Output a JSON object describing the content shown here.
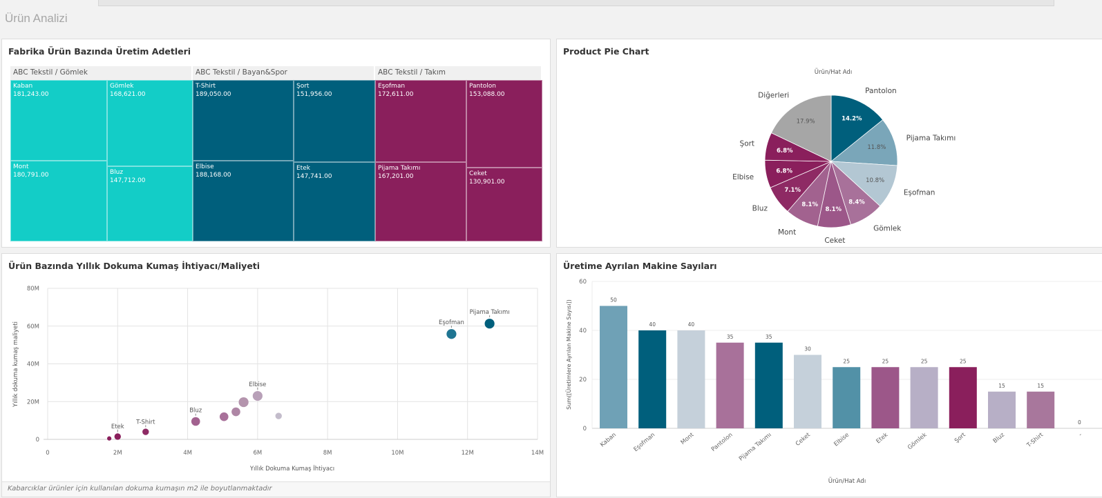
{
  "sheet": {
    "title": "Ürün Analizi"
  },
  "treemap": {
    "title": "Fabrika Ürün Bazında Üretim Adetleri",
    "groups": [
      {
        "name": "ABC Tekstil / Gömlek",
        "color": "#13cdc7",
        "items": [
          {
            "label": "Kaban",
            "value": "181,243.00"
          },
          {
            "label": "Gömlek",
            "value": "168,621.00"
          },
          {
            "label": "Mont",
            "value": "180,791.00"
          },
          {
            "label": "Bluz",
            "value": "147,712.00"
          }
        ]
      },
      {
        "name": "ABC Tekstil / Bayan&Spor",
        "color": "#005f7c",
        "items": [
          {
            "label": "T-Shirt",
            "value": "189,050.00"
          },
          {
            "label": "Şort",
            "value": "151,956.00"
          },
          {
            "label": "Elbise",
            "value": "188,168.00"
          },
          {
            "label": "Etek",
            "value": "147,741.00"
          }
        ]
      },
      {
        "name": "ABC Tekstil / Takım",
        "color": "#8a1f5c",
        "items": [
          {
            "label": "Eşofman",
            "value": "172,611.00"
          },
          {
            "label": "Pantolon",
            "value": "153,088.00"
          },
          {
            "label": "Pijama Takımı",
            "value": "167,201.00"
          },
          {
            "label": "Ceket",
            "value": "130,901.00"
          }
        ]
      }
    ]
  },
  "pie": {
    "title": "Product Pie Chart",
    "dimension_label": "Ürün/Hat Adı"
  },
  "scatter": {
    "title": "Ürün Bazında Yıllık Dokuma Kumaş İhtiyacı/Maliyeti",
    "footnote": "Kabarcıklar ürünler için kullanılan dokuma kumaşın m2 ile boyutlanmaktadır"
  },
  "bar": {
    "title": "Üretime Ayrılan Makine Sayıları"
  },
  "chart_data": [
    {
      "type": "pie",
      "title": "Product Pie Chart",
      "dimension_label": "Ürün/Hat Adı",
      "slices": [
        {
          "label": "Pantolon",
          "percent": 14.2,
          "color": "#005f7c",
          "label_text": "14.2%"
        },
        {
          "label": "Pijama Takımı",
          "percent": 11.8,
          "color": "#7aa6b9",
          "label_text": "11.8%"
        },
        {
          "label": "Eşofman",
          "percent": 10.8,
          "color": "#b3c7d3",
          "label_text": "10.8%"
        },
        {
          "label": "Gömlek",
          "percent": 8.4,
          "color": "#a8719a",
          "label_text": "8.4%"
        },
        {
          "label": "Ceket",
          "percent": 8.1,
          "color": "#9c5789",
          "label_text": "8.1%"
        },
        {
          "label": "Mont",
          "percent": 8.1,
          "color": "#a2628f",
          "label_text": "8.1%"
        },
        {
          "label": "Bluz",
          "percent": 7.1,
          "color": "#8e2a64",
          "label_text": "7.1%"
        },
        {
          "label": "Elbise",
          "percent": 6.8,
          "color": "#8a1f5c",
          "label_text": "6.8%"
        },
        {
          "label": "Şort",
          "percent": 6.8,
          "color": "#8a1f5c",
          "label_text": "6.8%"
        },
        {
          "label": "Diğerleri",
          "percent": 17.9,
          "color": "#a6a6a6",
          "label_text": "17.9%"
        }
      ]
    },
    {
      "type": "scatter",
      "title": "Ürün Bazında Yıllık Dokuma Kumaş İhtiyacı/Maliyeti",
      "xlabel": "Yıllık Dokuma Kumaş İhtiyacı",
      "ylabel": "Yıllık dokuma kumaş maliyeti",
      "xlim": [
        0,
        14000000
      ],
      "ylim": [
        0,
        80000000
      ],
      "xticks": [
        "0",
        "2M",
        "4M",
        "6M",
        "8M",
        "10M",
        "12M",
        "14M"
      ],
      "yticks": [
        "0",
        "20M",
        "40M",
        "60M",
        "80M"
      ],
      "grid": true,
      "points": [
        {
          "label": "",
          "x": 1760000,
          "y": 500000,
          "size": 1,
          "color": "#8a1f5c"
        },
        {
          "label": "Etek",
          "x": 2000000,
          "y": 1500000,
          "size": 2,
          "color": "#8a1f5c"
        },
        {
          "label": "T-Shirt",
          "x": 2800000,
          "y": 4000000,
          "size": 2,
          "color": "#8e2a64"
        },
        {
          "label": "Bluz",
          "x": 4230000,
          "y": 9500000,
          "size": 3,
          "color": "#a2628f"
        },
        {
          "label": "",
          "x": 5040000,
          "y": 12000000,
          "size": 3,
          "color": "#a8719a"
        },
        {
          "label": "",
          "x": 5380000,
          "y": 14600000,
          "size": 3,
          "color": "#ae86a5"
        },
        {
          "label": "",
          "x": 5600000,
          "y": 19700000,
          "size": 3.5,
          "color": "#b494ad"
        },
        {
          "label": "Elbise",
          "x": 6000000,
          "y": 23000000,
          "size": 3.5,
          "color": "#b8a0b8"
        },
        {
          "label": "",
          "x": 6600000,
          "y": 12400000,
          "size": 2,
          "color": "#c3bccb"
        },
        {
          "label": "Eşofman",
          "x": 11540000,
          "y": 55800000,
          "size": 3.5,
          "color": "#1f7592"
        },
        {
          "label": "Pijama Takımı",
          "x": 12630000,
          "y": 61300000,
          "size": 3.5,
          "color": "#005f7c"
        }
      ]
    },
    {
      "type": "bar",
      "title": "Üretime Ayrılan Makine Sayıları",
      "xlabel": "Ürün/Hat Adı",
      "ylabel": "Sum([Üretimlere Ayrılan Makine Sayısı])",
      "ylim": [
        0,
        60
      ],
      "yticks": [
        "0",
        "20",
        "40",
        "60"
      ],
      "categories": [
        "Kaban",
        "Eşofman",
        "Mont",
        "Pantolon",
        "Pijama Takımı",
        "Ceket",
        "Elbise",
        "Etek",
        "Gömlek",
        "Şort",
        "Bluz",
        "T-Shirt",
        "-"
      ],
      "values": [
        50,
        40,
        40,
        35,
        35,
        30,
        25,
        25,
        25,
        25,
        15,
        15,
        0
      ],
      "colors": [
        "#6fa1b6",
        "#005f7c",
        "#c5d0da",
        "#a8719a",
        "#005f7c",
        "#c5d0da",
        "#5291a7",
        "#9c5789",
        "#b7afc6",
        "#8a1f5c",
        "#b7afc6",
        "#a8779c",
        "#cccccc"
      ]
    }
  ]
}
